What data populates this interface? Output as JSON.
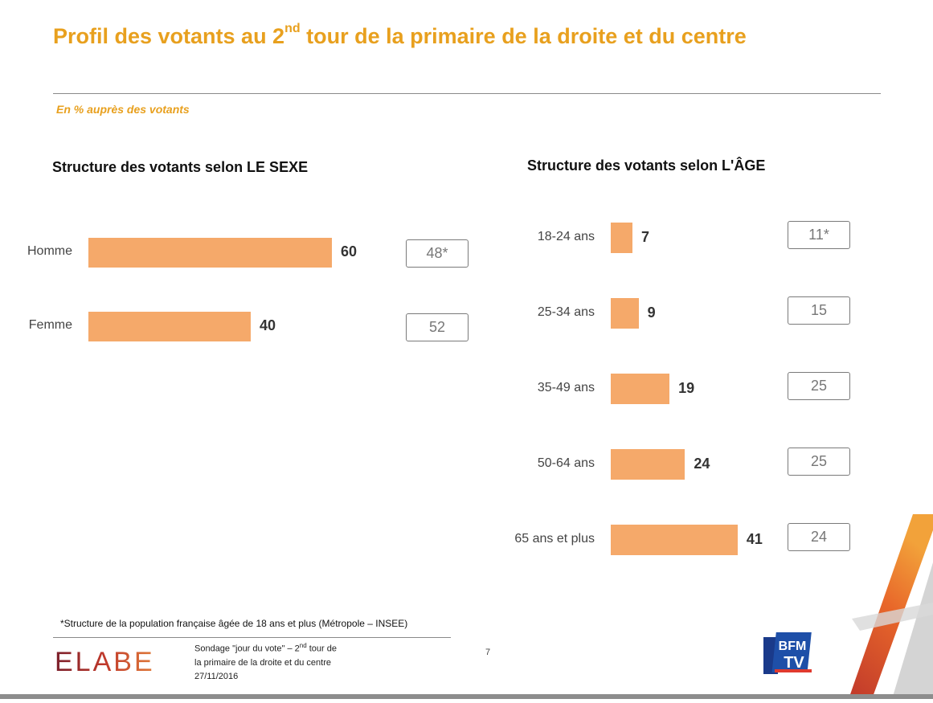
{
  "title": {
    "prefix": "Profil des votants au 2",
    "sup": "nd",
    "suffix": " tour de la primaire de la droite et du centre"
  },
  "subtitle": "En %  auprès des votants",
  "colors": {
    "accent": "#e8a01e",
    "bar": "#f5a96a"
  },
  "chart_data": [
    {
      "type": "bar",
      "orientation": "horizontal",
      "title": "Structure des votants selon LE SEXE",
      "categories": [
        "Homme",
        "Femme"
      ],
      "values": [
        60,
        40
      ],
      "reference_values": [
        "48*",
        "52"
      ]
    },
    {
      "type": "bar",
      "orientation": "horizontal",
      "title": "Structure des votants selon L'ÂGE",
      "categories": [
        "18-24 ans",
        "25-34 ans",
        "35-49 ans",
        "50-64 ans",
        "65 ans et plus"
      ],
      "values": [
        7,
        9,
        19,
        24,
        41
      ],
      "reference_values": [
        "11*",
        "15",
        "25",
        "25",
        "24"
      ]
    }
  ],
  "footnote": "*Structure de la population française âgée de 18 ans et plus (Métropole – INSEE)",
  "footer": {
    "logo": "ELABE",
    "line1_prefix": "Sondage \"jour du vote\" – 2",
    "line1_sup": "nd",
    "line1_suffix": " tour de",
    "line2": "la primaire de la droite et du centre",
    "date": "27/11/2016",
    "page_number": "7",
    "tv_logo": "BFM TV"
  }
}
